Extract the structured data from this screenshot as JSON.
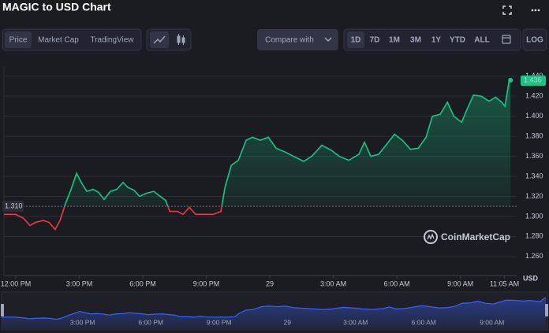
{
  "header": {
    "title": "MAGIC to USD Chart"
  },
  "toolbar": {
    "tabs": [
      "Price",
      "Market Cap",
      "TradingView"
    ],
    "active_tab": 0,
    "compare": "Compare with",
    "ranges": [
      "1D",
      "7D",
      "1M",
      "3M",
      "1Y",
      "YTD",
      "ALL"
    ],
    "active_range": 0,
    "log": "LOG"
  },
  "watermark": "CoinMarketCap",
  "chart_data": {
    "type": "line",
    "x": [
      -0.56,
      0,
      0.37,
      0.67,
      0.93,
      1.3,
      1.57,
      1.86,
      2.09,
      2.35,
      2.61,
      2.87,
      3.09,
      3.35,
      3.65,
      3.91,
      4.17,
      4.47,
      4.77,
      5.07,
      5.29,
      5.59,
      5.85,
      6.15,
      6.52,
      6.82,
      7.08,
      7.27,
      7.64,
      7.9,
      8.2,
      8.5,
      8.87,
      9.32,
      9.69,
      9.88,
      10.18,
      10.51,
      10.88,
      11.18,
      11.55,
      11.93,
      12.3,
      12.75,
      13.12,
      13.6,
      13.98,
      14.46,
      14.91,
      15.28,
      15.73,
      16.21,
      16.47,
      16.77,
      17.14,
      17.52,
      17.89,
      18.26,
      18.64,
      19.01,
      19.38,
      19.68,
      20.05,
      20.39,
      20.69,
      21.06,
      21.32,
      21.62,
      21.99,
      22.36,
      22.66,
      22.96,
      23.11,
      23.3,
      23.37
    ],
    "values": [
      1.302,
      1.302,
      1.298,
      1.291,
      1.294,
      1.296,
      1.294,
      1.287,
      1.296,
      1.313,
      1.327,
      1.343,
      1.334,
      1.325,
      1.327,
      1.324,
      1.317,
      1.325,
      1.327,
      1.334,
      1.329,
      1.326,
      1.32,
      1.323,
      1.325,
      1.32,
      1.316,
      1.305,
      1.305,
      1.302,
      1.309,
      1.302,
      1.302,
      1.302,
      1.305,
      1.329,
      1.351,
      1.356,
      1.376,
      1.379,
      1.376,
      1.379,
      1.368,
      1.364,
      1.36,
      1.355,
      1.36,
      1.371,
      1.366,
      1.36,
      1.356,
      1.362,
      1.374,
      1.36,
      1.362,
      1.372,
      1.382,
      1.376,
      1.367,
      1.368,
      1.379,
      1.4,
      1.402,
      1.414,
      1.4,
      1.394,
      1.407,
      1.421,
      1.42,
      1.415,
      1.419,
      1.414,
      1.41,
      1.435,
      1.436
    ],
    "up_color": "#16c784",
    "down_color": "#ea3943",
    "baseline": {
      "value": 1.31,
      "label": "1.310"
    },
    "xlim": [
      -0.56,
      23.4
    ],
    "ylim": [
      1.241,
      1.45
    ],
    "xticks": [
      {
        "value": 0,
        "label": "12:00 PM"
      },
      {
        "value": 3,
        "label": "3:00 PM"
      },
      {
        "value": 6,
        "label": "6:00 PM"
      },
      {
        "value": 9,
        "label": "9:00 PM"
      },
      {
        "value": 12,
        "label": "29"
      },
      {
        "value": 15,
        "label": "3:00 AM"
      },
      {
        "value": 18,
        "label": "6:00 AM"
      },
      {
        "value": 21,
        "label": "9:00 AM"
      },
      {
        "value": 23.083,
        "label": "11:05 AM"
      }
    ],
    "yticks": [
      {
        "value": 1.26,
        "label": "1.260"
      },
      {
        "value": 1.28,
        "label": "1.280"
      },
      {
        "value": 1.3,
        "label": "1.300"
      },
      {
        "value": 1.32,
        "label": "1.320"
      },
      {
        "value": 1.34,
        "label": "1.340"
      },
      {
        "value": 1.36,
        "label": "1.360"
      },
      {
        "value": 1.38,
        "label": "1.380"
      },
      {
        "value": 1.4,
        "label": "1.400"
      },
      {
        "value": 1.42,
        "label": "1.420"
      },
      {
        "value": 1.44,
        "label": "1.440"
      }
    ],
    "y_axis_label": "USD",
    "grid": true
  }
}
